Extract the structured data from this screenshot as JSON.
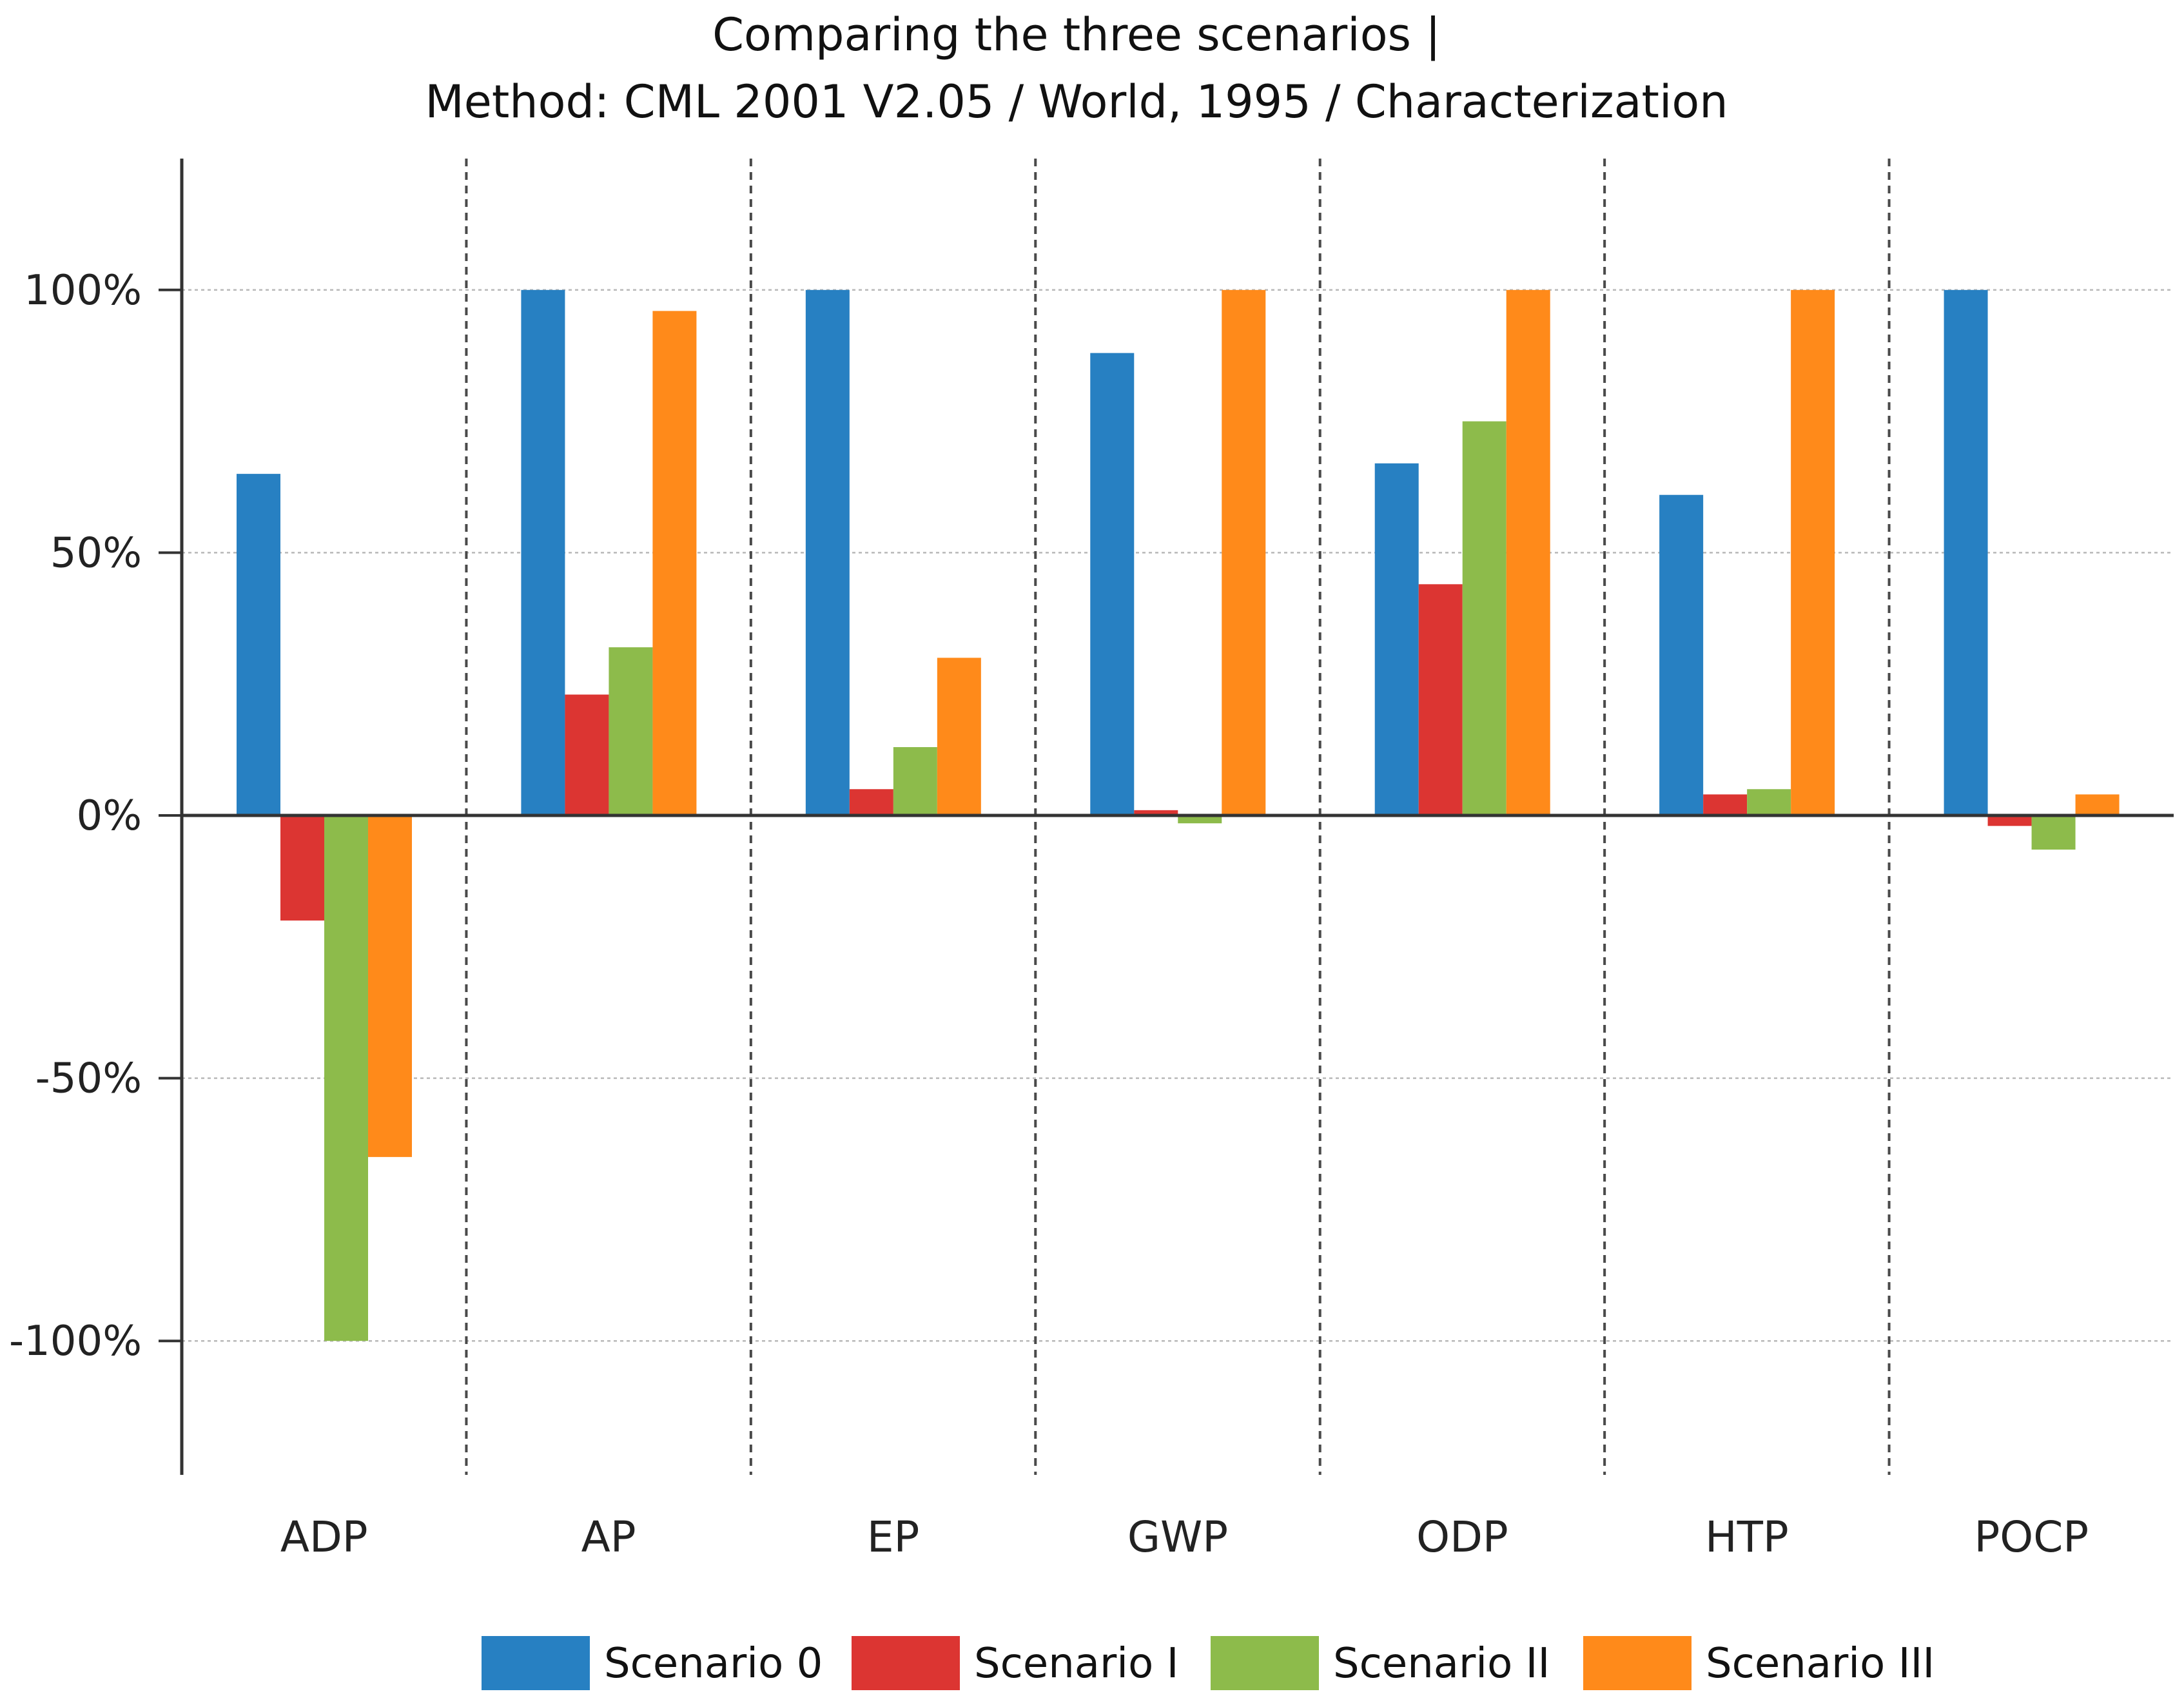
{
  "chart_data": {
    "type": "bar",
    "title": [
      "Comparing the three scenarios |",
      "Method: CML 2001 V2.05 / World, 1995 / Characterization"
    ],
    "xlabel": "",
    "ylabel": "",
    "ylim": [
      -125,
      125
    ],
    "yticks": [
      {
        "value": 100,
        "label": "100%"
      },
      {
        "value": 50,
        "label": "50%"
      },
      {
        "value": 0,
        "label": "0%"
      },
      {
        "value": -50,
        "label": "-50%"
      },
      {
        "value": -100,
        "label": "-100%"
      }
    ],
    "grid": true,
    "legend_position": "bottom",
    "categories": [
      "ADP",
      "AP",
      "EP",
      "GWP",
      "ODP",
      "HTP",
      "POCP"
    ],
    "series": [
      {
        "name": "Scenario 0",
        "color": "#2780c2",
        "values": [
          65,
          100,
          100,
          88,
          67,
          61,
          100
        ]
      },
      {
        "name": "Scenario I",
        "color": "#dc3532",
        "values": [
          -20,
          23,
          5,
          1,
          44,
          4,
          -2
        ]
      },
      {
        "name": "Scenario II",
        "color": "#8dbb4b",
        "values": [
          -100,
          32,
          13,
          -1.5,
          75,
          5,
          -6.5
        ]
      },
      {
        "name": "Scenario III",
        "color": "#ff8a1a",
        "values": [
          -65,
          96,
          30,
          100,
          100,
          100,
          4
        ]
      }
    ]
  }
}
